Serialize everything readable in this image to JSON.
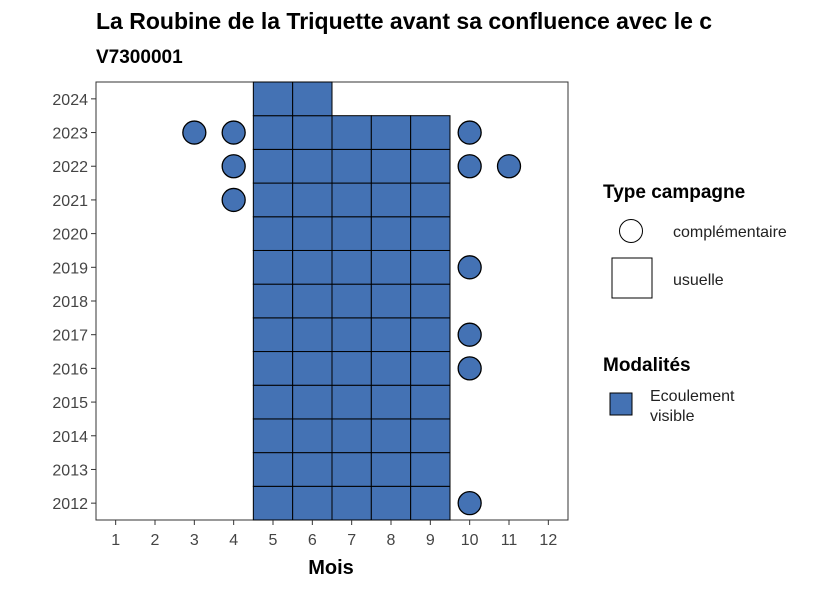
{
  "chart_data": {
    "type": "scatter",
    "title": "La Roubine de la Triquette avant sa confluence avec le c",
    "subtitle": "V7300001",
    "xlabel": "Mois",
    "ylabel": "",
    "x_ticks": [
      1,
      2,
      3,
      4,
      5,
      6,
      7,
      8,
      9,
      10,
      11,
      12
    ],
    "y_ticks": [
      2012,
      2013,
      2014,
      2015,
      2016,
      2017,
      2018,
      2019,
      2020,
      2021,
      2022,
      2023,
      2024
    ],
    "xlim": [
      0.5,
      12.5
    ],
    "ylim": [
      2011.5,
      2024.5
    ],
    "grid": false,
    "fill_color": "#4472B4",
    "usuelle_months": [
      {
        "year": 2012,
        "months": [
          5,
          6,
          7,
          8,
          9
        ]
      },
      {
        "year": 2013,
        "months": [
          5,
          6,
          7,
          8,
          9
        ]
      },
      {
        "year": 2014,
        "months": [
          5,
          6,
          7,
          8,
          9
        ]
      },
      {
        "year": 2015,
        "months": [
          5,
          6,
          7,
          8,
          9
        ]
      },
      {
        "year": 2016,
        "months": [
          5,
          6,
          7,
          8,
          9
        ]
      },
      {
        "year": 2017,
        "months": [
          5,
          6,
          7,
          8,
          9
        ]
      },
      {
        "year": 2018,
        "months": [
          5,
          6,
          7,
          8,
          9
        ]
      },
      {
        "year": 2019,
        "months": [
          5,
          6,
          7,
          8,
          9
        ]
      },
      {
        "year": 2020,
        "months": [
          5,
          6,
          7,
          8,
          9
        ]
      },
      {
        "year": 2021,
        "months": [
          5,
          6,
          7,
          8,
          9
        ]
      },
      {
        "year": 2022,
        "months": [
          5,
          6,
          7,
          8,
          9
        ]
      },
      {
        "year": 2023,
        "months": [
          5,
          6,
          7,
          8,
          9
        ]
      },
      {
        "year": 2024,
        "months": [
          5,
          6
        ]
      }
    ],
    "complementaire_points": [
      {
        "month": 3,
        "year": 2023
      },
      {
        "month": 4,
        "year": 2023
      },
      {
        "month": 10,
        "year": 2023
      },
      {
        "month": 4,
        "year": 2022
      },
      {
        "month": 10,
        "year": 2022
      },
      {
        "month": 11,
        "year": 2022
      },
      {
        "month": 4,
        "year": 2021
      },
      {
        "month": 10,
        "year": 2019
      },
      {
        "month": 10,
        "year": 2017
      },
      {
        "month": 10,
        "year": 2016
      },
      {
        "month": 10,
        "year": 2012
      }
    ],
    "legend": {
      "type_title": "Type campagne",
      "type_entries": [
        "complémentaire",
        "usuelle"
      ],
      "modalites_title": "Modalités",
      "modalites_entries": [
        {
          "line1": "Ecoulement",
          "line2": "visible"
        }
      ]
    }
  }
}
